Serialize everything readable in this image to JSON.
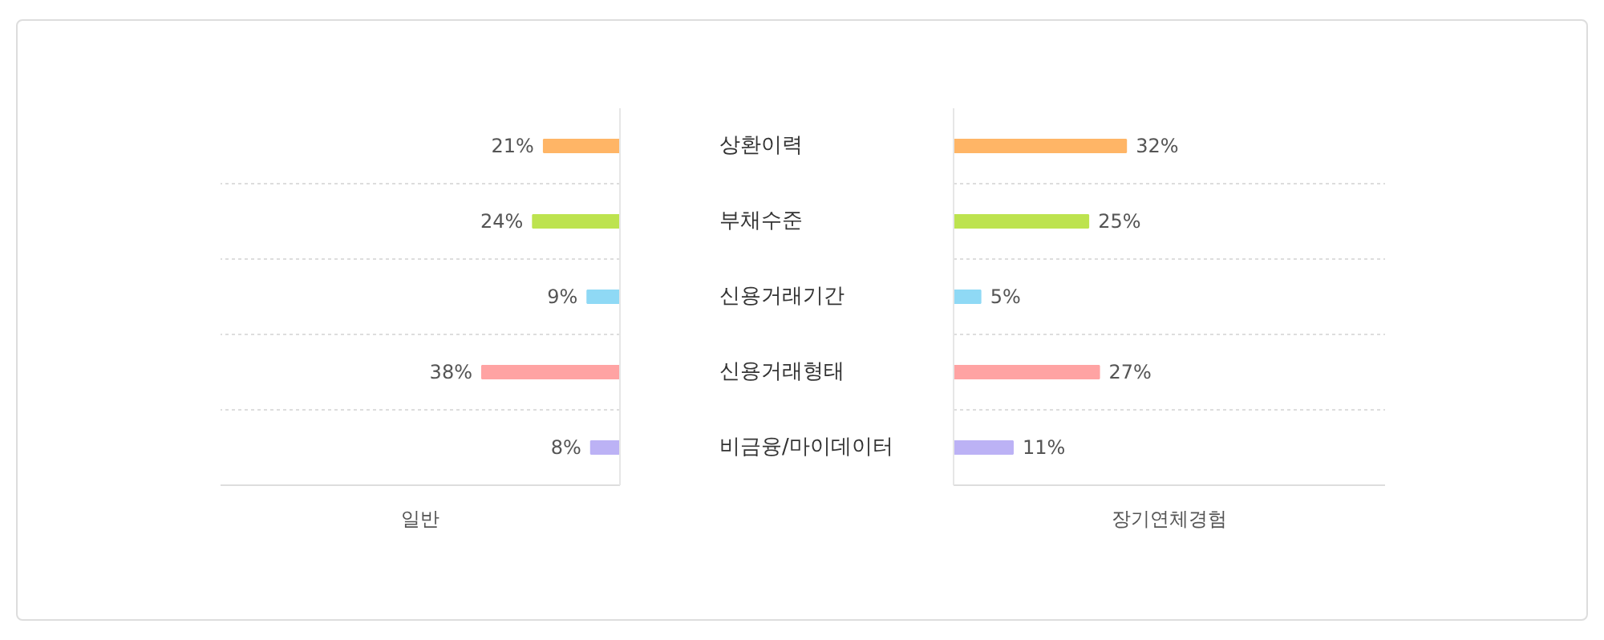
{
  "chart_data": [
    {
      "type": "bar",
      "orientation": "horizontal",
      "grid": "y",
      "tick_labels": "y",
      "xlabel": "일반",
      "xlim": [
        110,
        0
      ],
      "categories": [
        "상환이력",
        "부채수준",
        "신용거래기간",
        "신용거래형태",
        "비금융/마이데이터"
      ],
      "values": [
        21,
        24,
        9,
        38,
        8
      ],
      "colors": [
        "#ffb566",
        "#bde34f",
        "#8fd9f5",
        "#ffa3a3",
        "#bcb2f5"
      ],
      "value_labels": [
        "21%",
        "24%",
        "9%",
        "38%",
        "8%"
      ]
    },
    {
      "type": "bar",
      "orientation": "horizontal",
      "grid": "y",
      "tick_labels": false,
      "xlabel": "장기연체경험",
      "xlim": [
        0,
        80
      ],
      "values": [
        32,
        25,
        5,
        27,
        11
      ],
      "categories": [
        null,
        null,
        null,
        null,
        null
      ],
      "colors": [
        "#ffb566",
        "#bde34f",
        "#8fd9f5",
        "#ffa3a3",
        "#bcb2f5"
      ],
      "value_labels": [
        "32%",
        "25%",
        "5%",
        "27%",
        "11%"
      ]
    }
  ]
}
